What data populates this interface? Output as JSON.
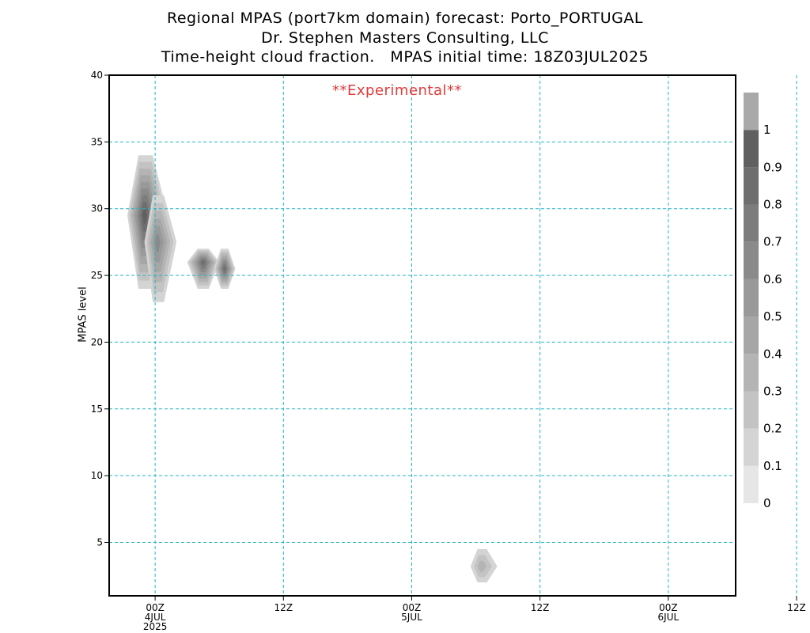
{
  "titles": {
    "line1": "Regional MPAS (port7km domain) forecast: Porto_PORTUGAL",
    "line2": "Dr. Stephen Masters Consulting, LLC",
    "line3": "Time-height cloud fraction.   MPAS initial time: 18Z03JUL2025"
  },
  "annotation": "**Experimental**",
  "colors": {
    "grid": "#22b5c5",
    "annotation": "#e03a3a",
    "shades": [
      "#e6e6e6",
      "#d4d4d4",
      "#c3c3c3",
      "#b4b4b4",
      "#a6a6a6",
      "#999999",
      "#8a8a8a",
      "#7c7c7c",
      "#6e6e6e",
      "#606060",
      "#a9a9a9"
    ]
  },
  "chart_data": {
    "type": "heatmap",
    "ylabel": "MPAS level",
    "ylim": [
      1,
      40
    ],
    "yticks": [
      5,
      10,
      15,
      20,
      25,
      30,
      35,
      40
    ],
    "xlim_hours": [
      -4.3,
      54.3
    ],
    "xticks": [
      {
        "hour": 0,
        "lines": [
          "00Z",
          "4JUL",
          "2025"
        ]
      },
      {
        "hour": 12,
        "lines": [
          "12Z"
        ]
      },
      {
        "hour": 24,
        "lines": [
          "00Z",
          "5JUL"
        ]
      },
      {
        "hour": 36,
        "lines": [
          "12Z"
        ]
      },
      {
        "hour": 48,
        "lines": [
          "00Z",
          "6JUL"
        ]
      },
      {
        "hour": 60,
        "lines": [
          "12Z"
        ]
      }
    ],
    "grid": true,
    "colorbar": {
      "levels": [
        0,
        0.1,
        0.2,
        0.3,
        0.4,
        0.5,
        0.6,
        0.7,
        0.8,
        0.9,
        1
      ],
      "labels": [
        "0",
        "0.1",
        "0.2",
        "0.3",
        "0.4",
        "0.5",
        "0.6",
        "0.7",
        "0.8",
        "0.9",
        "1"
      ],
      "placement": "right"
    },
    "cloud_features": [
      {
        "hour_center": -1,
        "level_center": 29.5,
        "hour_span": [
          -2.6,
          1.2
        ],
        "level_span": [
          24,
          34
        ],
        "max_fraction": 0.9
      },
      {
        "hour_center": 0.2,
        "level_center": 27.5,
        "hour_span": [
          -1,
          2
        ],
        "level_span": [
          23,
          31
        ],
        "max_fraction": 0.6
      },
      {
        "hour_center": 4.5,
        "level_center": 26,
        "hour_span": [
          3,
          6
        ],
        "level_span": [
          24,
          27
        ],
        "max_fraction": 0.8
      },
      {
        "hour_center": 6.5,
        "level_center": 25.5,
        "hour_span": [
          5.5,
          7.5
        ],
        "level_span": [
          24,
          27
        ],
        "max_fraction": 0.8
      },
      {
        "hour_center": 30.5,
        "level_center": 3.2,
        "hour_span": [
          29.5,
          32
        ],
        "level_span": [
          2,
          4.5
        ],
        "max_fraction": 0.3
      }
    ]
  }
}
